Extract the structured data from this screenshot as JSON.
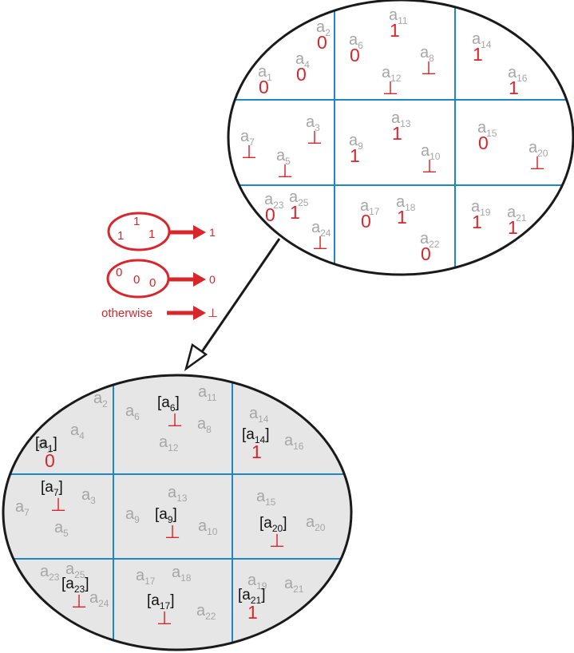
{
  "colors": {
    "agent": "#a6a6a6",
    "value": "#d9262b",
    "grid": "#1f86c8",
    "outline": "#1a1a1a",
    "bottom_fill": "#e6e6e6",
    "rep": "#111111"
  },
  "top_ellipse": {
    "agents": [
      {
        "base": "a",
        "sub": "1",
        "value": "0"
      },
      {
        "base": "a",
        "sub": "2",
        "value": "0"
      },
      {
        "base": "a",
        "sub": "4",
        "value": "0"
      },
      {
        "base": "a",
        "sub": "6",
        "value": "0"
      },
      {
        "base": "a",
        "sub": "11",
        "value": "1"
      },
      {
        "base": "a",
        "sub": "8",
        "value": "⊥"
      },
      {
        "base": "a",
        "sub": "12",
        "value": "⊥"
      },
      {
        "base": "a",
        "sub": "14",
        "value": "1"
      },
      {
        "base": "a",
        "sub": "16",
        "value": "1"
      },
      {
        "base": "a",
        "sub": "7",
        "value": "⊥"
      },
      {
        "base": "a",
        "sub": "3",
        "value": "⊥"
      },
      {
        "base": "a",
        "sub": "5",
        "value": "⊥"
      },
      {
        "base": "a",
        "sub": "13",
        "value": "1"
      },
      {
        "base": "a",
        "sub": "9",
        "value": "1"
      },
      {
        "base": "a",
        "sub": "10",
        "value": "⊥"
      },
      {
        "base": "a",
        "sub": "15",
        "value": "0"
      },
      {
        "base": "a",
        "sub": "20",
        "value": "⊥"
      },
      {
        "base": "a",
        "sub": "23",
        "value": "0"
      },
      {
        "base": "a",
        "sub": "25",
        "value": "1"
      },
      {
        "base": "a",
        "sub": "24",
        "value": "⊥"
      },
      {
        "base": "a",
        "sub": "17",
        "value": "0"
      },
      {
        "base": "a",
        "sub": "18",
        "value": "1"
      },
      {
        "base": "a",
        "sub": "22",
        "value": "0"
      },
      {
        "base": "a",
        "sub": "19",
        "value": "1"
      },
      {
        "base": "a",
        "sub": "21",
        "value": "1"
      }
    ]
  },
  "legend": {
    "rule_ones": {
      "inputs": [
        "1",
        "1",
        "1"
      ],
      "output": "1"
    },
    "rule_zeros": {
      "inputs": [
        "0",
        "0",
        "0"
      ],
      "output": "0"
    },
    "rule_other": {
      "label": "otherwise",
      "output": "⊥"
    }
  },
  "bottom_ellipse": {
    "agents": [
      {
        "base": "a",
        "sub": "2"
      },
      {
        "base": "a",
        "sub": "4"
      },
      {
        "base": "a",
        "sub": "1"
      },
      {
        "base": "a",
        "sub": "6"
      },
      {
        "base": "a",
        "sub": "11"
      },
      {
        "base": "a",
        "sub": "8"
      },
      {
        "base": "a",
        "sub": "12"
      },
      {
        "base": "a",
        "sub": "14"
      },
      {
        "base": "a",
        "sub": "16"
      },
      {
        "base": "a",
        "sub": "7"
      },
      {
        "base": "a",
        "sub": "3"
      },
      {
        "base": "a",
        "sub": "5"
      },
      {
        "base": "a",
        "sub": "13"
      },
      {
        "base": "a",
        "sub": "9"
      },
      {
        "base": "a",
        "sub": "10"
      },
      {
        "base": "a",
        "sub": "15"
      },
      {
        "base": "a",
        "sub": "20"
      },
      {
        "base": "a",
        "sub": "23"
      },
      {
        "base": "a",
        "sub": "25"
      },
      {
        "base": "a",
        "sub": "24"
      },
      {
        "base": "a",
        "sub": "17"
      },
      {
        "base": "a",
        "sub": "18"
      },
      {
        "base": "a",
        "sub": "22"
      },
      {
        "base": "a",
        "sub": "19"
      },
      {
        "base": "a",
        "sub": "21"
      }
    ],
    "representatives": [
      {
        "open": "[",
        "base": "a",
        "sub": "1",
        "close": "]",
        "value": "0"
      },
      {
        "open": "[",
        "base": "a",
        "sub": "6",
        "close": "]",
        "value": "⊥"
      },
      {
        "open": "[",
        "base": "a",
        "sub": "14",
        "close": "]",
        "value": "1"
      },
      {
        "open": "[",
        "base": "a",
        "sub": "7",
        "close": "]",
        "value": "⊥"
      },
      {
        "open": "[",
        "base": "a",
        "sub": "9",
        "close": "]",
        "value": "⊥"
      },
      {
        "open": "[",
        "base": "a",
        "sub": "20",
        "close": "]",
        "value": "⊥"
      },
      {
        "open": "[",
        "base": "a",
        "sub": "23",
        "close": "]",
        "value": "⊥"
      },
      {
        "open": "[",
        "base": "a",
        "sub": "17",
        "close": "]",
        "value": "⊥"
      },
      {
        "open": "[",
        "base": "a",
        "sub": "21",
        "close": "]",
        "value": "1"
      }
    ]
  }
}
